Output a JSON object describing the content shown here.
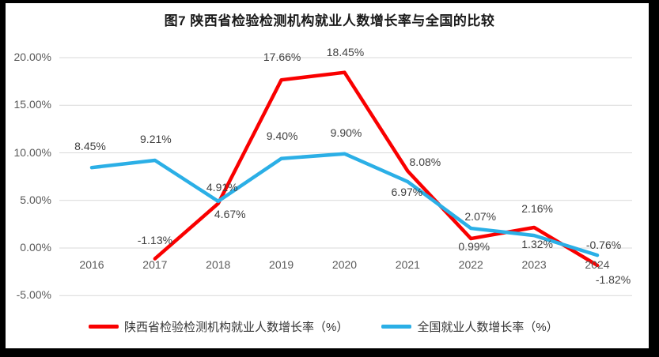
{
  "chart_data": {
    "type": "line",
    "title": "图7 陕西省检验检测机构就业人数增长率与全国的比较",
    "categories": [
      "2016",
      "2017",
      "2018",
      "2019",
      "2020",
      "2021",
      "2022",
      "2023",
      "2024"
    ],
    "y_axis": {
      "min": -5,
      "max": 20,
      "ticks": [
        {
          "value": 20,
          "label": "20.00%"
        },
        {
          "value": 15,
          "label": "15.00%"
        },
        {
          "value": 10,
          "label": "10.00%"
        },
        {
          "value": 5,
          "label": "5.00%"
        },
        {
          "value": 0,
          "label": "0.00%"
        },
        {
          "value": -5,
          "label": "-5.00%"
        }
      ]
    },
    "grid": true,
    "legend_position": "bottom",
    "colors": {
      "shaanxi_line": "#f90000",
      "national_line": "#2bafe6",
      "gridline": "#d9d9d9",
      "tick_text": "#595959",
      "data_label_text": "#404040"
    },
    "series": [
      {
        "name": "陕西省检验检测机构就业人数增长率（%）",
        "color": "#f90000",
        "points": [
          {
            "category": "2017",
            "value": -1.13,
            "label": "-1.13%",
            "label_offset": [
              0,
              -24
            ]
          },
          {
            "category": "2018",
            "value": 4.67,
            "label": "4.67%",
            "label_offset": [
              15,
              13
            ]
          },
          {
            "category": "2019",
            "value": 17.66,
            "label": "17.66%",
            "label_offset": [
              1,
              -29
            ]
          },
          {
            "category": "2020",
            "value": 18.45,
            "label": "18.45%",
            "label_offset": [
              1,
              -26
            ]
          },
          {
            "category": "2021",
            "value": 8.08,
            "label": "8.08%",
            "label_offset": [
              22,
              -12
            ]
          },
          {
            "category": "2022",
            "value": 0.99,
            "label": "0.99%",
            "label_offset": [
              4,
              10
            ]
          },
          {
            "category": "2023",
            "value": 2.16,
            "label": "2.16%",
            "label_offset": [
              4,
              -24
            ]
          },
          {
            "category": "2024",
            "value": -1.82,
            "label": "-1.82%",
            "label_offset": [
              20,
              18
            ]
          }
        ]
      },
      {
        "name": "全国就业人数增长率（%）",
        "color": "#2bafe6",
        "points": [
          {
            "category": "2016",
            "value": 8.45,
            "label": "8.45%",
            "label_offset": [
              -2,
              -27
            ]
          },
          {
            "category": "2017",
            "value": 9.21,
            "label": "9.21%",
            "label_offset": [
              1,
              -27
            ]
          },
          {
            "category": "2018",
            "value": 4.91,
            "label": "4.91%",
            "label_offset": [
              5,
              -18
            ]
          },
          {
            "category": "2019",
            "value": 9.4,
            "label": "9.40%",
            "label_offset": [
              1,
              -29
            ]
          },
          {
            "category": "2020",
            "value": 9.9,
            "label": "9.90%",
            "label_offset": [
              2,
              -27
            ]
          },
          {
            "category": "2021",
            "value": 6.97,
            "label": "6.97%",
            "label_offset": [
              -1,
              13
            ]
          },
          {
            "category": "2022",
            "value": 2.07,
            "label": "2.07%",
            "label_offset": [
              12,
              -15
            ]
          },
          {
            "category": "2023",
            "value": 1.32,
            "label": "1.32%",
            "label_offset": [
              4,
              11
            ]
          },
          {
            "category": "2024",
            "value": -0.76,
            "label": "-0.76%",
            "label_offset": [
              8,
              -13
            ]
          }
        ]
      }
    ]
  }
}
